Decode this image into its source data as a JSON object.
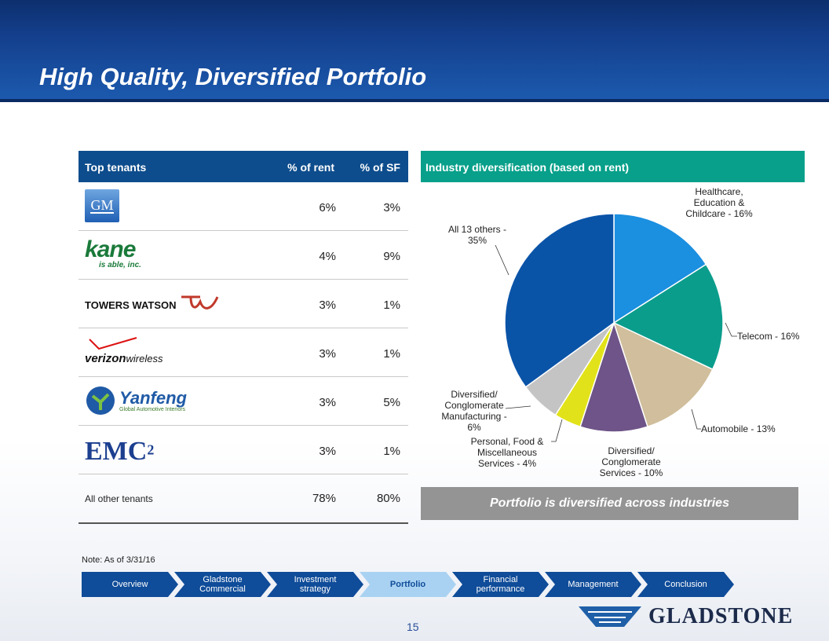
{
  "slide": {
    "title": "High Quality, Diversified Portfolio",
    "page_number": "15",
    "note": "Note: As of 3/31/16",
    "brand": "GLADSTONE"
  },
  "table": {
    "headers": {
      "tenant": "Top tenants",
      "rent": "% of rent",
      "sf": "% of SF"
    },
    "rows": [
      {
        "logo_text": "GM",
        "rent": "6%",
        "sf": "3%"
      },
      {
        "logo_text": "kane",
        "logo_sub": "is able, inc.",
        "rent": "4%",
        "sf": "9%"
      },
      {
        "logo_text": "TOWERS WATSON",
        "rent": "3%",
        "sf": "1%"
      },
      {
        "logo_text": "verizon",
        "logo_sub": "wireless",
        "rent": "3%",
        "sf": "1%"
      },
      {
        "logo_text": "Yanfeng",
        "logo_sub": "Global Automotive Interiors",
        "rent": "3%",
        "sf": "5%"
      },
      {
        "logo_text": "EMC",
        "logo_sup": "2",
        "rent": "3%",
        "sf": "1%"
      }
    ],
    "other": {
      "label": "All other tenants",
      "rent": "78%",
      "sf": "80%"
    }
  },
  "chart_data": {
    "type": "pie",
    "title": "Industry diversification (based on rent)",
    "slices": [
      {
        "label": "Healthcare, Education & Childcare - 16%",
        "value": 16,
        "color": "#1b8fe0"
      },
      {
        "label": "Telecom - 16%",
        "value": 16,
        "color": "#0b9d8c"
      },
      {
        "label": "Automobile - 13%",
        "value": 13,
        "color": "#d0be9c"
      },
      {
        "label": "Diversified/ Conglomerate Services - 10%",
        "value": 10,
        "color": "#6e5488"
      },
      {
        "label": "Personal, Food & Miscellaneous Services - 4%",
        "value": 4,
        "color": "#e2e21a"
      },
      {
        "label": "Diversified/ Conglomerate Manufacturing - 6%",
        "value": 6,
        "color": "#c4c4c4"
      },
      {
        "label": "All 13 others - 35%",
        "value": 35,
        "color": "#0a54a8"
      }
    ],
    "label_lines": [
      [
        "Healthcare,",
        "Education &",
        "Childcare - 16%"
      ],
      [
        "Telecom - 16%"
      ],
      [
        "Automobile - 13%"
      ],
      [
        "Diversified/",
        "Conglomerate",
        "Services - 10%"
      ],
      [
        "Personal, Food &",
        "Miscellaneous",
        "Services - 4%"
      ],
      [
        "Diversified/",
        "Conglomerate",
        "Manufacturing -",
        "6%"
      ],
      [
        "All 13 others -",
        "35%"
      ]
    ],
    "callout": "Portfolio is diversified across industries"
  },
  "nav": [
    "Overview",
    "Gladstone Commercial",
    "Investment strategy",
    "Portfolio",
    "Financial performance",
    "Management",
    "Conclusion"
  ],
  "nav_active": "Portfolio"
}
